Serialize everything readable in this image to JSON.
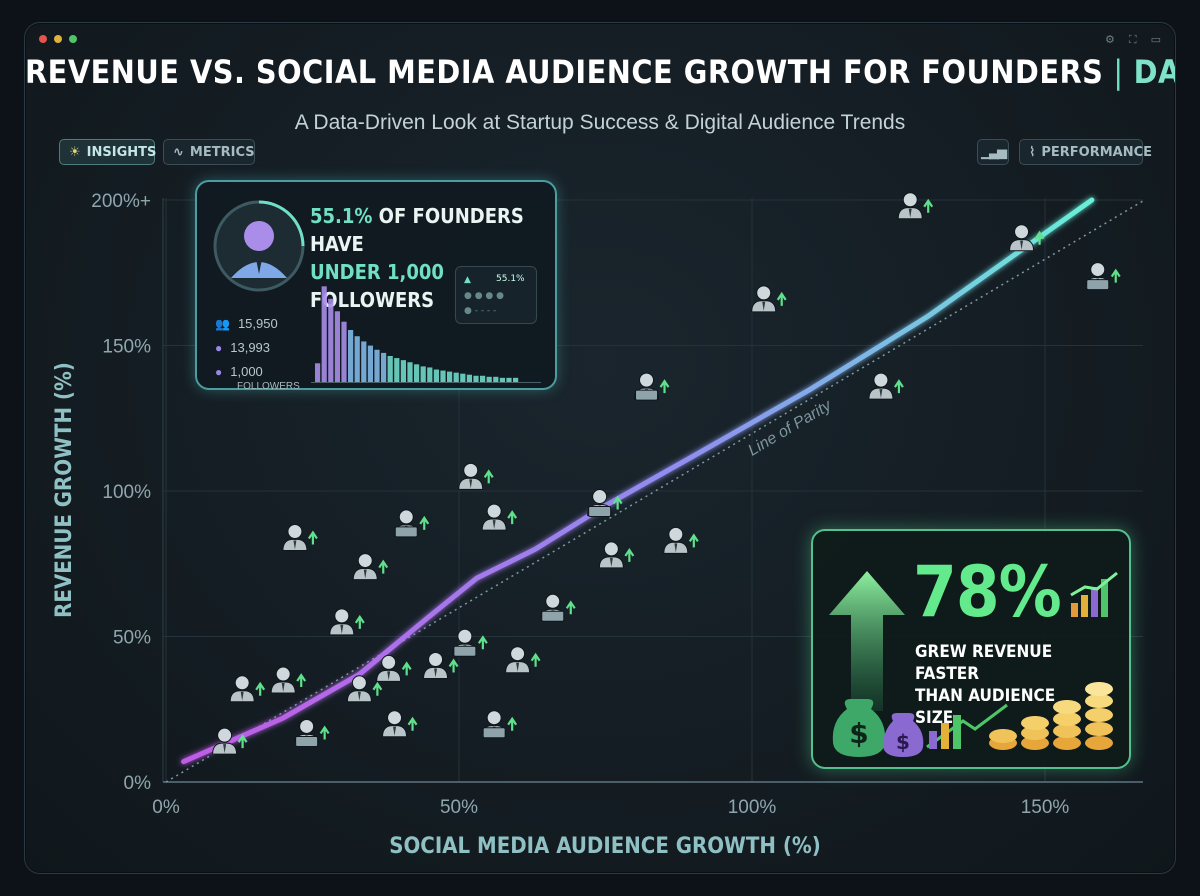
{
  "header": {
    "title_main": "REVENUE VS. SOCIAL MEDIA AUDIENCE GROWTH FOR FOUNDERS",
    "title_sep": "|",
    "title_accent": "DATA ANALYSIS",
    "subtitle": "A Data-Driven Look at Startup Success & Digital Audience Trends"
  },
  "toolbar": {
    "insights_label": "INSIGHTS",
    "metrics_label": "METRICS",
    "performance_label": "PERFORMANCE"
  },
  "insight_panel": {
    "pct": "55.1%",
    "line1_rest": " OF FOUNDERS HAVE",
    "line2_hl": "UNDER 1,000",
    "line2_rest": " FOLLOWERS",
    "stats": [
      {
        "icon": "group-icon",
        "value": "15,950"
      },
      {
        "icon": "person-icon",
        "value": "13,993"
      },
      {
        "icon": "person-icon",
        "value": "1,000"
      }
    ],
    "followers_label": "FOLLOWERS",
    "mini_legend_value": "55.1%",
    "histogram": [
      0.18,
      0.92,
      0.8,
      0.68,
      0.58,
      0.5,
      0.44,
      0.39,
      0.35,
      0.31,
      0.28,
      0.25,
      0.23,
      0.21,
      0.19,
      0.17,
      0.15,
      0.14,
      0.12,
      0.11,
      0.1,
      0.09,
      0.08,
      0.07,
      0.06,
      0.06,
      0.05,
      0.05,
      0.04,
      0.04,
      0.04
    ]
  },
  "callout": {
    "value": "78%",
    "caption_line1": "GREW REVENUE FASTER",
    "caption_line2": "THAN AUDIENCE SIZE"
  },
  "colors": {
    "accent_teal": "#6fe0c4",
    "accent_green": "#63ea8c",
    "accent_purple": "#a884f0",
    "trend_start": "#c25be8",
    "trend_end": "#67f0d8"
  },
  "chart_data": {
    "type": "scatter",
    "title": "REVENUE VS. SOCIAL MEDIA AUDIENCE GROWTH FOR FOUNDERS",
    "xlabel": "SOCIAL MEDIA AUDIENCE GROWTH (%)",
    "ylabel": "REVENUE GROWTH (%)",
    "x_ticks": [
      "0%",
      "50%",
      "100%",
      "150%"
    ],
    "y_ticks": [
      "0%",
      "50%",
      "100%",
      "150%",
      "200%+"
    ],
    "xlim": [
      0,
      167
    ],
    "ylim": [
      0,
      200
    ],
    "grid": true,
    "parity_label": "Line of Parity",
    "parity_line": [
      [
        0,
        0
      ],
      [
        167,
        200
      ]
    ],
    "trend_line": [
      [
        3,
        7
      ],
      [
        20,
        22
      ],
      [
        33,
        37
      ],
      [
        45,
        57
      ],
      [
        53,
        70
      ],
      [
        63,
        80
      ],
      [
        75,
        95
      ],
      [
        90,
        112
      ],
      [
        110,
        135
      ],
      [
        130,
        160
      ],
      [
        158,
        200
      ]
    ],
    "points": [
      {
        "x": 10,
        "y": 13,
        "kind": "person"
      },
      {
        "x": 13,
        "y": 31,
        "kind": "person"
      },
      {
        "x": 20,
        "y": 34,
        "kind": "person"
      },
      {
        "x": 24,
        "y": 16,
        "kind": "laptop"
      },
      {
        "x": 22,
        "y": 83,
        "kind": "person"
      },
      {
        "x": 34,
        "y": 73,
        "kind": "person"
      },
      {
        "x": 30,
        "y": 54,
        "kind": "person"
      },
      {
        "x": 33,
        "y": 31,
        "kind": "person"
      },
      {
        "x": 38,
        "y": 38,
        "kind": "person"
      },
      {
        "x": 39,
        "y": 19,
        "kind": "person"
      },
      {
        "x": 41,
        "y": 88,
        "kind": "laptop"
      },
      {
        "x": 46,
        "y": 39,
        "kind": "person"
      },
      {
        "x": 51,
        "y": 47,
        "kind": "laptop"
      },
      {
        "x": 52,
        "y": 104,
        "kind": "person"
      },
      {
        "x": 56,
        "y": 19,
        "kind": "laptop"
      },
      {
        "x": 56,
        "y": 90,
        "kind": "person"
      },
      {
        "x": 60,
        "y": 41,
        "kind": "person"
      },
      {
        "x": 66,
        "y": 59,
        "kind": "laptop"
      },
      {
        "x": 74,
        "y": 95,
        "kind": "laptop"
      },
      {
        "x": 76,
        "y": 77,
        "kind": "person"
      },
      {
        "x": 82,
        "y": 135,
        "kind": "laptop"
      },
      {
        "x": 87,
        "y": 82,
        "kind": "person"
      },
      {
        "x": 102,
        "y": 165,
        "kind": "person"
      },
      {
        "x": 122,
        "y": 135,
        "kind": "person"
      },
      {
        "x": 127,
        "y": 197,
        "kind": "person"
      },
      {
        "x": 146,
        "y": 186,
        "kind": "person"
      },
      {
        "x": 159,
        "y": 173,
        "kind": "laptop"
      }
    ],
    "annotations": [
      "55.1% OF FOUNDERS HAVE UNDER 1,000 FOLLOWERS",
      "78% GREW REVENUE FASTER THAN AUDIENCE SIZE"
    ]
  }
}
